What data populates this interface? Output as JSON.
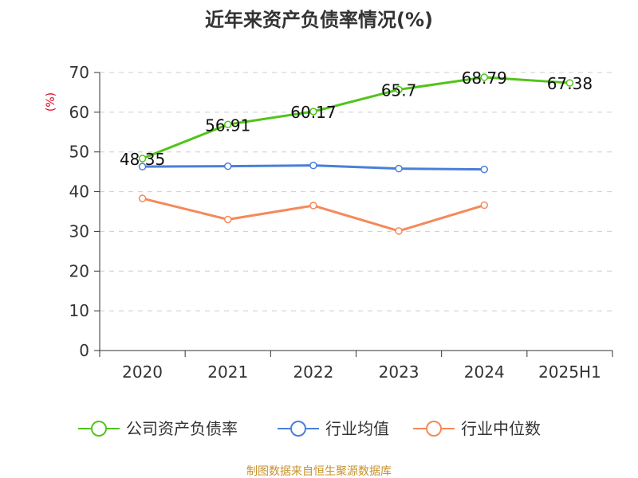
{
  "chart_data": {
    "type": "line",
    "title": "近年来资产负债率情况(%)",
    "unit_label": "(%)",
    "categories": [
      "2020",
      "2021",
      "2022",
      "2023",
      "2024",
      "2025H1"
    ],
    "ylim": [
      0,
      70
    ],
    "yticks": [
      0,
      10,
      20,
      30,
      40,
      50,
      60,
      70
    ],
    "grid": true,
    "legend_position": "bottom",
    "series": [
      {
        "name": "公司资产负债率",
        "color": "#52c41a",
        "values": [
          48.35,
          56.91,
          60.17,
          65.7,
          68.79,
          67.38
        ],
        "labels": [
          "48.35",
          "56.91",
          "60.17",
          "65.7",
          "68.79",
          "67.38"
        ]
      },
      {
        "name": "行业均值",
        "color": "#4a7fd9",
        "values": [
          46.3,
          46.4,
          46.6,
          45.8,
          45.6,
          null
        ]
      },
      {
        "name": "行业中位数",
        "color": "#f5895a",
        "values": [
          38.3,
          33.0,
          36.5,
          30.1,
          36.6,
          null
        ]
      }
    ],
    "source": "制图数据来自恒生聚源数据库"
  }
}
